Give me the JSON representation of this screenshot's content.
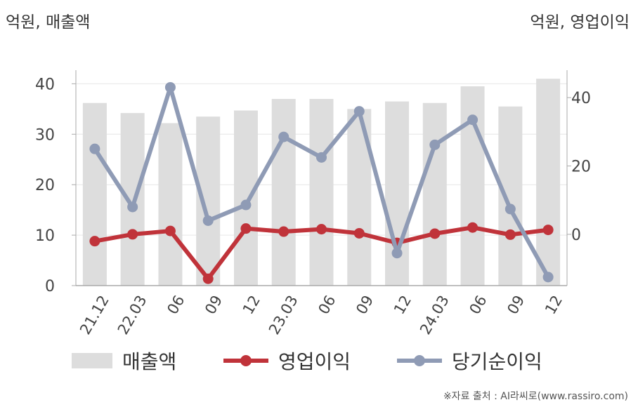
{
  "units": {
    "left": "억원, 매출액",
    "right": "억원, 영업이익"
  },
  "source": "※자료 출처 : AI라씨로(www.rassiro.com)",
  "colors": {
    "bar": "#dddddd",
    "operating": "#c0333a",
    "net": "#8f9bb5",
    "grid": "#e6e6e6",
    "axis": "#aaaaaa"
  },
  "chart_data": {
    "type": "bar+line",
    "categories": [
      "21.12",
      "22.03",
      "06",
      "09",
      "12",
      "23.03",
      "06",
      "09",
      "12",
      "24.03",
      "06",
      "09",
      "12"
    ],
    "y_left": {
      "ylim": [
        0,
        42
      ],
      "ticks": [
        0,
        10,
        20,
        30,
        40
      ]
    },
    "y_right": {
      "ylim": [
        -15,
        47
      ],
      "ticks": [
        0,
        20,
        40
      ]
    },
    "grid": true,
    "legend_position": "bottom",
    "series": [
      {
        "name": "매출액",
        "type": "bar",
        "axis": "left",
        "values": [
          36.2,
          34.2,
          32.2,
          33.5,
          34.7,
          37.0,
          37.0,
          35.0,
          36.5,
          36.2,
          39.5,
          35.5,
          41.0
        ]
      },
      {
        "name": "영업이익",
        "type": "line",
        "axis": "right",
        "values": [
          -2.0,
          0.0,
          1.0,
          -13.0,
          1.7,
          0.8,
          1.5,
          0.3,
          -2.5,
          0.2,
          2.0,
          -0.1,
          1.3
        ]
      },
      {
        "name": "당기순이익",
        "type": "line",
        "axis": "right",
        "values": [
          25.0,
          8.0,
          43.0,
          4.0,
          8.6,
          28.5,
          22.5,
          36.0,
          -5.5,
          26.2,
          33.5,
          7.4,
          -12.5
        ]
      }
    ]
  }
}
